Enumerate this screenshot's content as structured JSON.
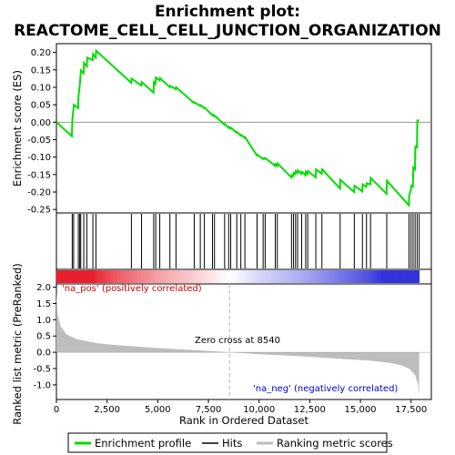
{
  "chart_data": {
    "type": "line",
    "title_line1": "Enrichment plot:",
    "title_line2": "REACTOME_CELL_CELL_JUNCTION_ORGANIZATION",
    "xlabel": "Rank in Ordered Dataset",
    "ylabel_top": "Enrichment score (ES)",
    "ylabel_bottom": "Ranked list metric (PreRanked)",
    "xlim": [
      0,
      18500
    ],
    "es_ylim": [
      -0.26,
      0.225
    ],
    "metric_ylim": [
      -1.45,
      2.1
    ],
    "x_ticks": [
      "0",
      "2,500",
      "5,000",
      "7,500",
      "10,000",
      "12,500",
      "15,000",
      "17,500"
    ],
    "x_tick_values": [
      0,
      2500,
      5000,
      7500,
      10000,
      12500,
      15000,
      17500
    ],
    "es_ticks": [
      "0.20",
      "0.15",
      "0.10",
      "0.05",
      "0.00",
      "-0.05",
      "-0.10",
      "-0.15",
      "-0.20",
      "-0.25"
    ],
    "es_tick_values": [
      0.2,
      0.15,
      0.1,
      0.05,
      0.0,
      -0.05,
      -0.1,
      -0.15,
      -0.2,
      -0.25
    ],
    "metric_ticks": [
      "2.0",
      "1.5",
      "1.0",
      "0.5",
      "0.0",
      "-0.5",
      "-1.0"
    ],
    "metric_tick_values": [
      2.0,
      1.5,
      1.0,
      0.5,
      0.0,
      -0.5,
      -1.0
    ],
    "hits": [
      780,
      850,
      1080,
      1150,
      1200,
      1350,
      1500,
      1800,
      1950,
      3700,
      4200,
      4800,
      4900,
      5100,
      5600,
      5900,
      6800,
      7100,
      7300,
      7700,
      7800,
      8300,
      8500,
      8600,
      8900,
      9100,
      9300,
      9900,
      10200,
      10300,
      10800,
      10900,
      11600,
      11700,
      11800,
      11900,
      12100,
      12300,
      12400,
      12800,
      13100,
      14000,
      14700,
      15100,
      15300,
      15500,
      16300,
      17400,
      17500,
      17600,
      17700,
      17800,
      17900
    ],
    "es_points": [
      [
        0,
        0.0
      ],
      [
        760,
        -0.04
      ],
      [
        790,
        0.01
      ],
      [
        860,
        0.05
      ],
      [
        1070,
        0.04
      ],
      [
        1090,
        0.075
      ],
      [
        1160,
        0.11
      ],
      [
        1210,
        0.148
      ],
      [
        1340,
        0.14
      ],
      [
        1360,
        0.17
      ],
      [
        1500,
        0.16
      ],
      [
        1520,
        0.185
      ],
      [
        1790,
        0.178
      ],
      [
        1810,
        0.195
      ],
      [
        1940,
        0.185
      ],
      [
        1960,
        0.205
      ],
      [
        3690,
        0.113
      ],
      [
        3710,
        0.125
      ],
      [
        4190,
        0.105
      ],
      [
        4210,
        0.115
      ],
      [
        4790,
        0.085
      ],
      [
        4810,
        0.115
      ],
      [
        4890,
        0.11
      ],
      [
        4910,
        0.128
      ],
      [
        5090,
        0.12
      ],
      [
        5110,
        0.126
      ],
      [
        5590,
        0.101
      ],
      [
        5610,
        0.104
      ],
      [
        5890,
        0.095
      ],
      [
        5910,
        0.1
      ],
      [
        6790,
        0.055
      ],
      [
        6810,
        0.057
      ],
      [
        7090,
        0.047
      ],
      [
        7110,
        0.049
      ],
      [
        7290,
        0.04
      ],
      [
        7310,
        0.042
      ],
      [
        7690,
        0.02
      ],
      [
        7710,
        0.022
      ],
      [
        7790,
        0.017
      ],
      [
        7810,
        0.019
      ],
      [
        8290,
        -0.007
      ],
      [
        8310,
        -0.005
      ],
      [
        8490,
        -0.016
      ],
      [
        8510,
        -0.014
      ],
      [
        8590,
        -0.018
      ],
      [
        8610,
        -0.016
      ],
      [
        8890,
        -0.03
      ],
      [
        8910,
        -0.028
      ],
      [
        9090,
        -0.038
      ],
      [
        9110,
        -0.036
      ],
      [
        9290,
        -0.045
      ],
      [
        9310,
        -0.043
      ],
      [
        9890,
        -0.095
      ],
      [
        9910,
        -0.093
      ],
      [
        10190,
        -0.105
      ],
      [
        10210,
        -0.103
      ],
      [
        10290,
        -0.105
      ],
      [
        10310,
        -0.103
      ],
      [
        10790,
        -0.125
      ],
      [
        10810,
        -0.12
      ],
      [
        10890,
        -0.125
      ],
      [
        10910,
        -0.118
      ],
      [
        11590,
        -0.158
      ],
      [
        11610,
        -0.152
      ],
      [
        11690,
        -0.155
      ],
      [
        11710,
        -0.145
      ],
      [
        11790,
        -0.148
      ],
      [
        11810,
        -0.14
      ],
      [
        11890,
        -0.145
      ],
      [
        11910,
        -0.138
      ],
      [
        12090,
        -0.148
      ],
      [
        12110,
        -0.142
      ],
      [
        12290,
        -0.152
      ],
      [
        12310,
        -0.142
      ],
      [
        12390,
        -0.148
      ],
      [
        12410,
        -0.14
      ],
      [
        12790,
        -0.158
      ],
      [
        12810,
        -0.135
      ],
      [
        13090,
        -0.148
      ],
      [
        13110,
        -0.135
      ],
      [
        13990,
        -0.19
      ],
      [
        14010,
        -0.165
      ],
      [
        14690,
        -0.2
      ],
      [
        14710,
        -0.182
      ],
      [
        15090,
        -0.198
      ],
      [
        15110,
        -0.178
      ],
      [
        15290,
        -0.185
      ],
      [
        15310,
        -0.175
      ],
      [
        15490,
        -0.178
      ],
      [
        15510,
        -0.16
      ],
      [
        16290,
        -0.205
      ],
      [
        16310,
        -0.168
      ],
      [
        17390,
        -0.238
      ],
      [
        17410,
        -0.208
      ],
      [
        17490,
        -0.195
      ],
      [
        17510,
        -0.182
      ],
      [
        17590,
        -0.185
      ],
      [
        17610,
        -0.13
      ],
      [
        17690,
        -0.135
      ],
      [
        17710,
        -0.07
      ],
      [
        17790,
        -0.072
      ],
      [
        17810,
        0.005
      ],
      [
        17900,
        0.005
      ]
    ],
    "metric_profile": [
      [
        0,
        1.85
      ],
      [
        60,
        1.2
      ],
      [
        200,
        0.8
      ],
      [
        500,
        0.55
      ],
      [
        1000,
        0.4
      ],
      [
        2000,
        0.28
      ],
      [
        3000,
        0.22
      ],
      [
        5000,
        0.13
      ],
      [
        7000,
        0.06
      ],
      [
        8540,
        0.0
      ],
      [
        10000,
        -0.06
      ],
      [
        12000,
        -0.12
      ],
      [
        14000,
        -0.2
      ],
      [
        15500,
        -0.26
      ],
      [
        16500,
        -0.33
      ],
      [
        17000,
        -0.4
      ],
      [
        17400,
        -0.5
      ],
      [
        17700,
        -0.7
      ],
      [
        17850,
        -1.0
      ],
      [
        17900,
        -1.35
      ]
    ],
    "zero_cross_rank": 8540,
    "annotations": {
      "pos": "'na_pos' (positively correlated)",
      "neg": "'na_neg' (negatively correlated)",
      "zero": "Zero cross at 8540"
    },
    "colors": {
      "es_line": "#00dd00",
      "hit_line": "#000000",
      "metric_fill": "#bdbdbd",
      "pos_label": "#cc0000",
      "neg_label": "#0000cc",
      "zero_line": "#b3b3b3",
      "heatmap_red": "#e8202e",
      "heatmap_blue": "#3333dd"
    },
    "legend": [
      "Enrichment profile",
      "Hits",
      "Ranking metric scores"
    ]
  }
}
